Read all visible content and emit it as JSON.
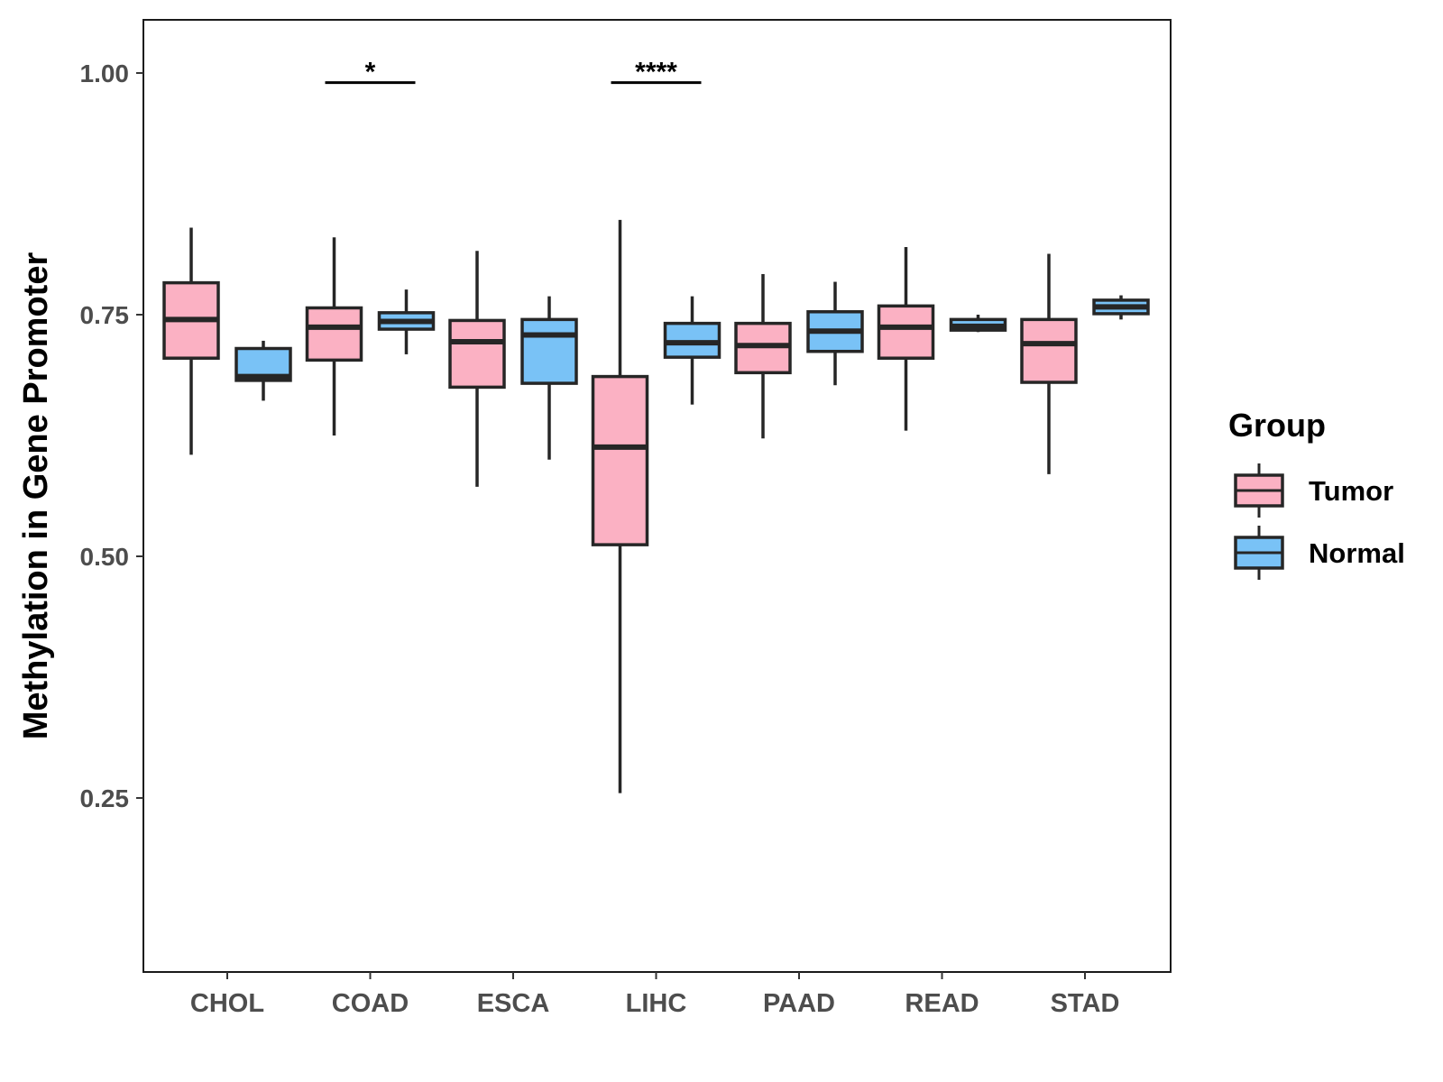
{
  "chart_data": {
    "type": "boxplot",
    "title": "",
    "xlabel": "",
    "ylabel": "Methylation in Gene Promoter",
    "ylim": [
      0.07,
      1.055
    ],
    "yticks": [
      0.25,
      0.5,
      0.75,
      1.0
    ],
    "ytick_labels": [
      "0.25",
      "0.50",
      "0.75",
      "1.00"
    ],
    "categories": [
      "CHOL",
      "COAD",
      "ESCA",
      "LIHC",
      "PAAD",
      "READ",
      "STAD"
    ],
    "legend": {
      "title": "Group",
      "position": "right",
      "entries": [
        {
          "name": "Tumor",
          "color": "#FBB1C3"
        },
        {
          "name": "Normal",
          "color": "#79C2F6"
        }
      ]
    },
    "series": [
      {
        "name": "Tumor",
        "color": "#FBB1C3",
        "boxes": [
          {
            "category": "CHOL",
            "min": 0.605,
            "q1": 0.705,
            "median": 0.745,
            "q3": 0.783,
            "max": 0.84
          },
          {
            "category": "COAD",
            "min": 0.625,
            "q1": 0.703,
            "median": 0.737,
            "q3": 0.757,
            "max": 0.83
          },
          {
            "category": "ESCA",
            "min": 0.572,
            "q1": 0.675,
            "median": 0.722,
            "q3": 0.744,
            "max": 0.816
          },
          {
            "category": "LIHC",
            "min": 0.255,
            "q1": 0.512,
            "median": 0.613,
            "q3": 0.686,
            "max": 0.848
          },
          {
            "category": "PAAD",
            "min": 0.622,
            "q1": 0.69,
            "median": 0.718,
            "q3": 0.741,
            "max": 0.792
          },
          {
            "category": "READ",
            "min": 0.63,
            "q1": 0.705,
            "median": 0.737,
            "q3": 0.759,
            "max": 0.82
          },
          {
            "category": "STAD",
            "min": 0.585,
            "q1": 0.68,
            "median": 0.72,
            "q3": 0.745,
            "max": 0.813
          }
        ]
      },
      {
        "name": "Normal",
        "color": "#79C2F6",
        "boxes": [
          {
            "category": "CHOL",
            "min": 0.661,
            "q1": 0.682,
            "median": 0.686,
            "q3": 0.715,
            "max": 0.723
          },
          {
            "category": "COAD",
            "min": 0.709,
            "q1": 0.735,
            "median": 0.743,
            "q3": 0.752,
            "max": 0.776
          },
          {
            "category": "ESCA",
            "min": 0.6,
            "q1": 0.679,
            "median": 0.729,
            "q3": 0.745,
            "max": 0.769
          },
          {
            "category": "LIHC",
            "min": 0.657,
            "q1": 0.706,
            "median": 0.721,
            "q3": 0.741,
            "max": 0.769
          },
          {
            "category": "PAAD",
            "min": 0.677,
            "q1": 0.712,
            "median": 0.733,
            "q3": 0.753,
            "max": 0.784
          },
          {
            "category": "READ",
            "min": 0.732,
            "q1": 0.734,
            "median": 0.738,
            "q3": 0.745,
            "max": 0.75
          },
          {
            "category": "STAD",
            "min": 0.745,
            "q1": 0.751,
            "median": 0.758,
            "q3": 0.765,
            "max": 0.77
          }
        ]
      }
    ],
    "significance": [
      {
        "category": "COAD",
        "label": "*",
        "y": 0.99
      },
      {
        "category": "LIHC",
        "label": "****",
        "y": 0.99
      }
    ]
  }
}
